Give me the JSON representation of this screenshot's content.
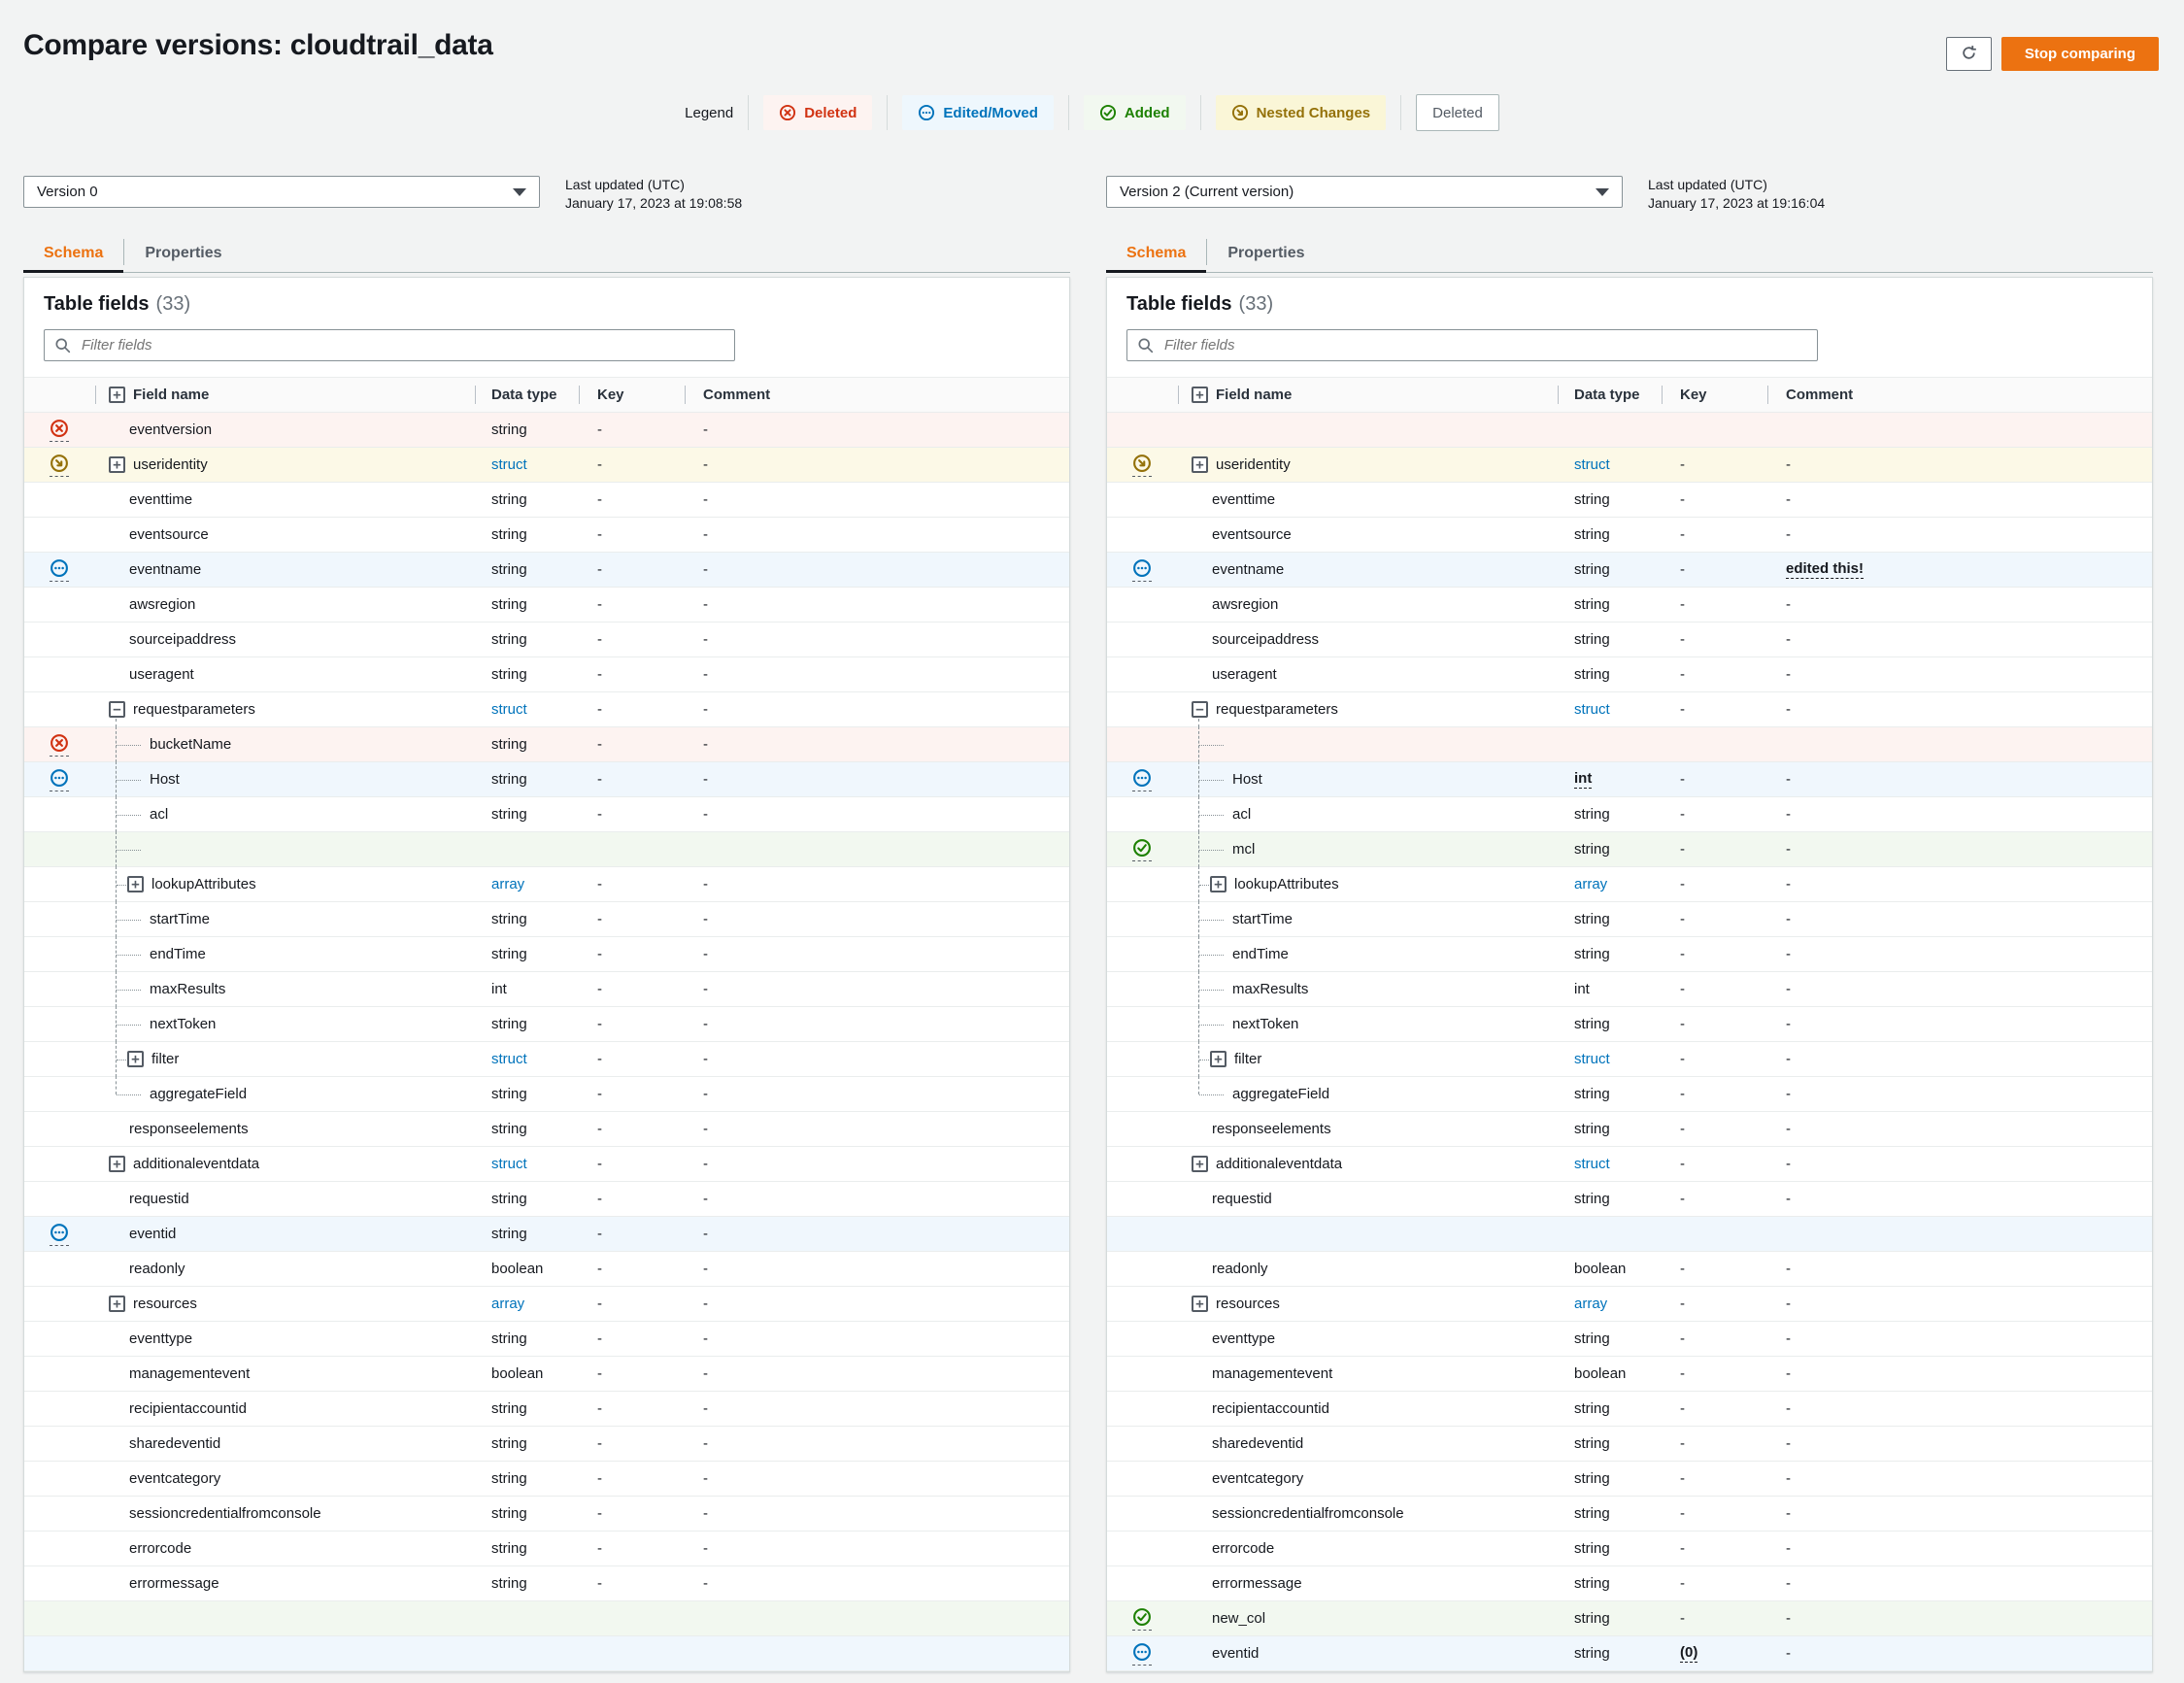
{
  "header": {
    "title": "Compare versions: cloudtrail_data",
    "stop_comparing_label": "Stop comparing"
  },
  "legend": {
    "label": "Legend",
    "items": [
      {
        "label": "Deleted",
        "type": "deleted",
        "icon": "x-circle-icon"
      },
      {
        "label": "Edited/Moved",
        "type": "edited",
        "icon": "ellipsis-circle-icon"
      },
      {
        "label": "Added",
        "type": "added",
        "icon": "check-circle-icon"
      },
      {
        "label": "Nested Changes",
        "type": "nested",
        "icon": "arrow-nested-circle-icon"
      },
      {
        "label": "Deleted",
        "type": "deleted-plain",
        "icon": null
      }
    ]
  },
  "tabs": [
    "Schema",
    "Properties"
  ],
  "table": {
    "title": "Table fields",
    "count": "(33)",
    "filter_placeholder": "Filter fields",
    "columns": {
      "field_name": "Field name",
      "data_type": "Data type",
      "key": "Key",
      "comment": "Comment"
    }
  },
  "colors": {
    "accent_orange": "#ec7211",
    "deleted_red": "#d13212",
    "edited_blue": "#0073bb",
    "added_green": "#1d8102",
    "nested_gold": "#947109",
    "link_blue": "#0073bb"
  },
  "panels": [
    {
      "version_label": "Version 0",
      "updated_label": "Last updated (UTC)",
      "updated_value": "January 17, 2023 at 19:08:58",
      "rows": [
        {
          "name": "eventversion",
          "type": "string",
          "key": "-",
          "comment": "-",
          "status": "deleted"
        },
        {
          "name": "useridentity",
          "type": "struct",
          "key": "-",
          "comment": "-",
          "status": "nested",
          "expander": "plus",
          "type_link": true
        },
        {
          "name": "eventtime",
          "type": "string",
          "key": "-",
          "comment": "-"
        },
        {
          "name": "eventsource",
          "type": "string",
          "key": "-",
          "comment": "-"
        },
        {
          "name": "eventname",
          "type": "string",
          "key": "-",
          "comment": "-",
          "status": "edited"
        },
        {
          "name": "awsregion",
          "type": "string",
          "key": "-",
          "comment": "-"
        },
        {
          "name": "sourceipaddress",
          "type": "string",
          "key": "-",
          "comment": "-"
        },
        {
          "name": "useragent",
          "type": "string",
          "key": "-",
          "comment": "-"
        },
        {
          "name": "requestparameters",
          "type": "struct",
          "key": "-",
          "comment": "-",
          "expander": "minus",
          "type_link": true,
          "guide": "start"
        },
        {
          "name": "bucketName",
          "type": "string",
          "key": "-",
          "comment": "-",
          "status": "deleted",
          "level": 1
        },
        {
          "name": "Host",
          "type": "string",
          "key": "-",
          "comment": "-",
          "status": "edited",
          "level": 1
        },
        {
          "name": "acl",
          "type": "string",
          "key": "-",
          "comment": "-",
          "level": 1
        },
        {
          "empty": true,
          "status": "added",
          "level": 1
        },
        {
          "name": "lookupAttributes",
          "type": "array",
          "key": "-",
          "comment": "-",
          "level": 1,
          "expander": "plus",
          "type_link": true
        },
        {
          "name": "startTime",
          "type": "string",
          "key": "-",
          "comment": "-",
          "level": 1
        },
        {
          "name": "endTime",
          "type": "string",
          "key": "-",
          "comment": "-",
          "level": 1
        },
        {
          "name": "maxResults",
          "type": "int",
          "key": "-",
          "comment": "-",
          "level": 1
        },
        {
          "name": "nextToken",
          "type": "string",
          "key": "-",
          "comment": "-",
          "level": 1
        },
        {
          "name": "filter",
          "type": "struct",
          "key": "-",
          "comment": "-",
          "level": 1,
          "expander": "plus",
          "type_link": true
        },
        {
          "name": "aggregateField",
          "type": "string",
          "key": "-",
          "comment": "-",
          "level": 1,
          "guide": "end"
        },
        {
          "name": "responseelements",
          "type": "string",
          "key": "-",
          "comment": "-"
        },
        {
          "name": "additionaleventdata",
          "type": "struct",
          "key": "-",
          "comment": "-",
          "expander": "plus",
          "type_link": true
        },
        {
          "name": "requestid",
          "type": "string",
          "key": "-",
          "comment": "-"
        },
        {
          "name": "eventid",
          "type": "string",
          "key": "-",
          "comment": "-",
          "status": "edited"
        },
        {
          "name": "readonly",
          "type": "boolean",
          "key": "-",
          "comment": "-"
        },
        {
          "name": "resources",
          "type": "array",
          "key": "-",
          "comment": "-",
          "expander": "plus",
          "type_link": true
        },
        {
          "name": "eventtype",
          "type": "string",
          "key": "-",
          "comment": "-"
        },
        {
          "name": "managementevent",
          "type": "boolean",
          "key": "-",
          "comment": "-"
        },
        {
          "name": "recipientaccountid",
          "type": "string",
          "key": "-",
          "comment": "-"
        },
        {
          "name": "sharedeventid",
          "type": "string",
          "key": "-",
          "comment": "-"
        },
        {
          "name": "eventcategory",
          "type": "string",
          "key": "-",
          "comment": "-"
        },
        {
          "name": "sessioncredentialfromconsole",
          "type": "string",
          "key": "-",
          "comment": "-"
        },
        {
          "name": "errorcode",
          "type": "string",
          "key": "-",
          "comment": "-"
        },
        {
          "name": "errormessage",
          "type": "string",
          "key": "-",
          "comment": "-"
        },
        {
          "empty": true,
          "status": "added"
        },
        {
          "empty": true,
          "status": "edited"
        }
      ]
    },
    {
      "version_label": "Version 2 (Current version)",
      "updated_label": "Last updated (UTC)",
      "updated_value": "January 17, 2023 at 19:16:04",
      "rows": [
        {
          "empty": true,
          "status": "deleted"
        },
        {
          "name": "useridentity",
          "type": "struct",
          "key": "-",
          "comment": "-",
          "status": "nested",
          "expander": "plus",
          "type_link": true
        },
        {
          "name": "eventtime",
          "type": "string",
          "key": "-",
          "comment": "-"
        },
        {
          "name": "eventsource",
          "type": "string",
          "key": "-",
          "comment": "-"
        },
        {
          "name": "eventname",
          "type": "string",
          "key": "-",
          "comment": "edited this!",
          "status": "edited",
          "comment_changed": true
        },
        {
          "name": "awsregion",
          "type": "string",
          "key": "-",
          "comment": "-"
        },
        {
          "name": "sourceipaddress",
          "type": "string",
          "key": "-",
          "comment": "-"
        },
        {
          "name": "useragent",
          "type": "string",
          "key": "-",
          "comment": "-"
        },
        {
          "name": "requestparameters",
          "type": "struct",
          "key": "-",
          "comment": "-",
          "expander": "minus",
          "type_link": true,
          "guide": "start"
        },
        {
          "empty": true,
          "status": "deleted",
          "level": 1
        },
        {
          "name": "Host",
          "type": "int",
          "key": "-",
          "comment": "-",
          "status": "edited",
          "level": 1,
          "type_changed": true
        },
        {
          "name": "acl",
          "type": "string",
          "key": "-",
          "comment": "-",
          "level": 1
        },
        {
          "name": "mcl",
          "type": "string",
          "key": "-",
          "comment": "-",
          "status": "added",
          "level": 1
        },
        {
          "name": "lookupAttributes",
          "type": "array",
          "key": "-",
          "comment": "-",
          "level": 1,
          "expander": "plus",
          "type_link": true
        },
        {
          "name": "startTime",
          "type": "string",
          "key": "-",
          "comment": "-",
          "level": 1
        },
        {
          "name": "endTime",
          "type": "string",
          "key": "-",
          "comment": "-",
          "level": 1
        },
        {
          "name": "maxResults",
          "type": "int",
          "key": "-",
          "comment": "-",
          "level": 1
        },
        {
          "name": "nextToken",
          "type": "string",
          "key": "-",
          "comment": "-",
          "level": 1
        },
        {
          "name": "filter",
          "type": "struct",
          "key": "-",
          "comment": "-",
          "level": 1,
          "expander": "plus",
          "type_link": true
        },
        {
          "name": "aggregateField",
          "type": "string",
          "key": "-",
          "comment": "-",
          "level": 1,
          "guide": "end"
        },
        {
          "name": "responseelements",
          "type": "string",
          "key": "-",
          "comment": "-"
        },
        {
          "name": "additionaleventdata",
          "type": "struct",
          "key": "-",
          "comment": "-",
          "expander": "plus",
          "type_link": true
        },
        {
          "name": "requestid",
          "type": "string",
          "key": "-",
          "comment": "-"
        },
        {
          "empty": true,
          "status": "edited"
        },
        {
          "name": "readonly",
          "type": "boolean",
          "key": "-",
          "comment": "-"
        },
        {
          "name": "resources",
          "type": "array",
          "key": "-",
          "comment": "-",
          "expander": "plus",
          "type_link": true
        },
        {
          "name": "eventtype",
          "type": "string",
          "key": "-",
          "comment": "-"
        },
        {
          "name": "managementevent",
          "type": "boolean",
          "key": "-",
          "comment": "-"
        },
        {
          "name": "recipientaccountid",
          "type": "string",
          "key": "-",
          "comment": "-"
        },
        {
          "name": "sharedeventid",
          "type": "string",
          "key": "-",
          "comment": "-"
        },
        {
          "name": "eventcategory",
          "type": "string",
          "key": "-",
          "comment": "-"
        },
        {
          "name": "sessioncredentialfromconsole",
          "type": "string",
          "key": "-",
          "comment": "-"
        },
        {
          "name": "errorcode",
          "type": "string",
          "key": "-",
          "comment": "-"
        },
        {
          "name": "errormessage",
          "type": "string",
          "key": "-",
          "comment": "-"
        },
        {
          "name": "new_col",
          "type": "string",
          "key": "-",
          "comment": "-",
          "status": "added"
        },
        {
          "name": "eventid",
          "type": "string",
          "key": "(0)",
          "comment": "-",
          "status": "edited",
          "key_changed": true
        }
      ]
    }
  ]
}
